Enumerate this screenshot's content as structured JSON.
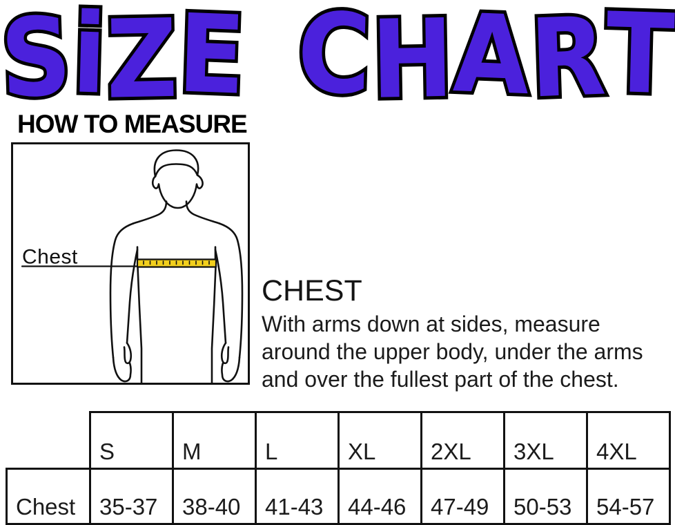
{
  "title": {
    "text": "SiZE CHART",
    "fill_color": "#4B21DC",
    "outline_color": "#000000"
  },
  "section_how_to_measure": {
    "heading": "HOW TO MEASURE"
  },
  "diagram": {
    "chest_label": "Chest",
    "tape_color": "#F2CF1D"
  },
  "measurement_instructions": {
    "heading": "CHEST",
    "description_lines": [
      "With arms down at sides, measure",
      "around the upper body, under the arms",
      "and over the fullest part of the chest."
    ]
  },
  "chart_data": {
    "type": "table",
    "columns": [
      "",
      "S",
      "M",
      "L",
      "XL",
      "2XL",
      "3XL",
      "4XL"
    ],
    "rows": [
      {
        "label": "Chest",
        "values": [
          "35-37",
          "38-40",
          "41-43",
          "44-46",
          "47-49",
          "50-53",
          "54-57"
        ]
      }
    ]
  }
}
